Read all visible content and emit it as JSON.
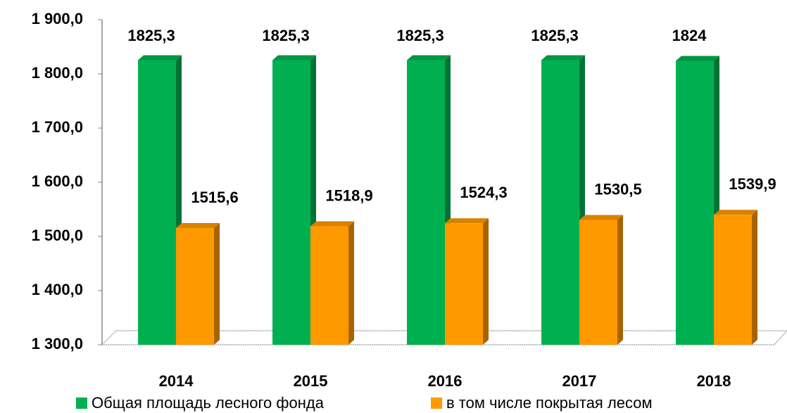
{
  "chart_data": {
    "type": "bar3d",
    "categories": [
      "2014",
      "2015",
      "2016",
      "2017",
      "2018"
    ],
    "series": [
      {
        "name": "Общая площадь лесного фонда",
        "color": "#00b050",
        "values": [
          1825.3,
          1825.3,
          1825.3,
          1825.3,
          1824
        ],
        "value_labels": [
          "1825,3",
          "1825,3",
          "1825,3",
          "1825,3",
          "1824"
        ]
      },
      {
        "name": "в том числе покрытая лесом",
        "color": "#ff9900",
        "values": [
          1515.6,
          1518.9,
          1524.3,
          1530.5,
          1539.9
        ],
        "value_labels": [
          "1515,6",
          "1518,9",
          "1524,3",
          "1530,5",
          "1539,9"
        ]
      }
    ],
    "ylim": [
      1300,
      1900
    ],
    "yticks": [
      {
        "value": 1300,
        "label": "1 300,0"
      },
      {
        "value": 1400,
        "label": "1 400,0"
      },
      {
        "value": 1500,
        "label": "1 500,0"
      },
      {
        "value": 1600,
        "label": "1 600,0"
      },
      {
        "value": 1700,
        "label": "1 700,0"
      },
      {
        "value": 1800,
        "label": "1 800,0"
      },
      {
        "value": 1900,
        "label": "1 900,0"
      }
    ],
    "grid": false
  }
}
